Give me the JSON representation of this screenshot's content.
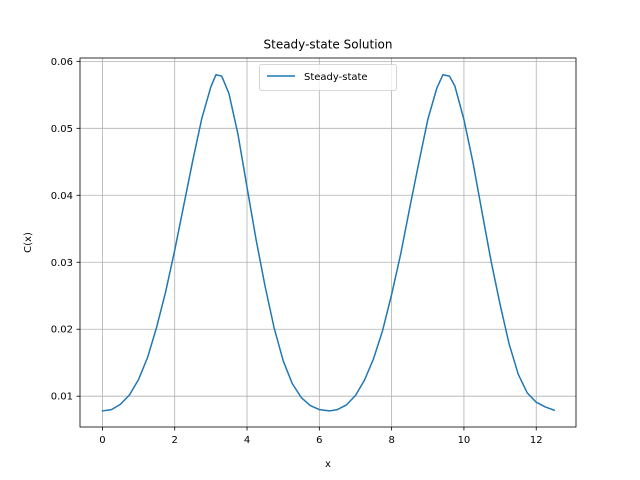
{
  "chart_data": {
    "type": "line",
    "title": "Steady-state Solution",
    "xlabel": "x",
    "ylabel": "C(x)",
    "xlim": [
      -0.62,
      13.1
    ],
    "ylim": [
      0.0054,
      0.0605
    ],
    "x_ticks": [
      0,
      2,
      4,
      6,
      8,
      10,
      12
    ],
    "y_ticks": [
      0.01,
      0.02,
      0.03,
      0.04,
      0.05,
      0.06
    ],
    "x_tick_labels": [
      "0",
      "2",
      "4",
      "6",
      "8",
      "10",
      "12"
    ],
    "y_tick_labels": [
      "0.01",
      "0.02",
      "0.03",
      "0.04",
      "0.05",
      "0.06"
    ],
    "grid": true,
    "legend_position": "upper center",
    "series": [
      {
        "name": "Steady-state",
        "color": "#1f77b4",
        "x": [
          0,
          0.25,
          0.5,
          0.75,
          1.0,
          1.25,
          1.5,
          1.75,
          2.0,
          2.25,
          2.5,
          2.75,
          3.0,
          3.14,
          3.3,
          3.5,
          3.75,
          4.0,
          4.25,
          4.5,
          4.75,
          5.0,
          5.25,
          5.5,
          5.75,
          6.0,
          6.28,
          6.5,
          6.75,
          7.0,
          7.25,
          7.5,
          7.75,
          8.0,
          8.25,
          8.5,
          8.75,
          9.0,
          9.25,
          9.42,
          9.6,
          9.75,
          10.0,
          10.25,
          10.5,
          10.75,
          11.0,
          11.25,
          11.5,
          11.75,
          12.0,
          12.25,
          12.5
        ],
        "y": [
          0.0078,
          0.008,
          0.0088,
          0.0102,
          0.0125,
          0.0158,
          0.0203,
          0.0256,
          0.0318,
          0.0385,
          0.0452,
          0.0515,
          0.0562,
          0.058,
          0.0578,
          0.0552,
          0.0491,
          0.0412,
          0.0334,
          0.0264,
          0.0202,
          0.0153,
          0.0119,
          0.0098,
          0.0086,
          0.008,
          0.0078,
          0.008,
          0.0087,
          0.0101,
          0.0124,
          0.0156,
          0.0198,
          0.0252,
          0.0312,
          0.0381,
          0.0448,
          0.0513,
          0.056,
          0.058,
          0.0578,
          0.0563,
          0.0513,
          0.0449,
          0.0375,
          0.0302,
          0.0237,
          0.0178,
          0.0133,
          0.0105,
          0.0091,
          0.0084,
          0.0079
        ]
      }
    ]
  }
}
